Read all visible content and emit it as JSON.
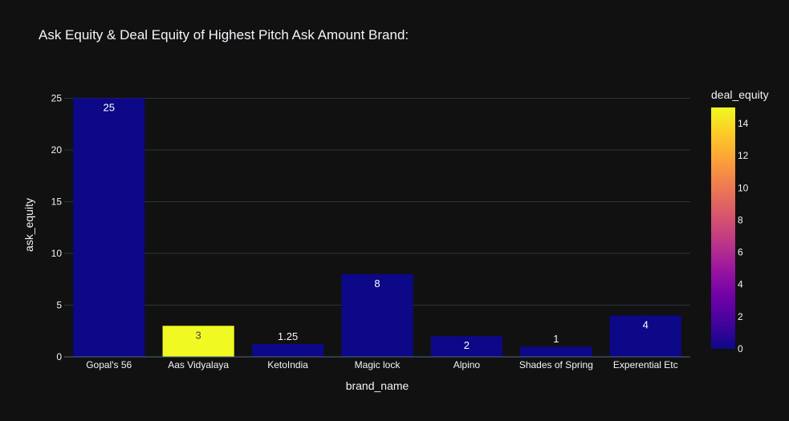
{
  "chart_data": {
    "type": "bar",
    "title": "Ask Equity & Deal Equity of Highest Pitch Ask Amount Brand:",
    "xlabel": "brand_name",
    "ylabel": "ask_equity",
    "categories": [
      "Gopal's 56",
      "Aas Vidyalaya",
      "KetoIndia",
      "Magic lock",
      "Alpino",
      "Shades of Spring",
      "Experential Etc"
    ],
    "values": [
      25,
      3,
      1.25,
      8,
      2,
      1,
      4
    ],
    "data_labels": [
      "25",
      "3",
      "1.25",
      "8",
      "2",
      "1",
      "4"
    ],
    "color_values": [
      0,
      15,
      0,
      0,
      0,
      0,
      0
    ],
    "ylim": [
      0,
      25.5
    ],
    "yticks": [
      0,
      5,
      10,
      15,
      20,
      25
    ],
    "grid": true,
    "colorbar": {
      "title": "deal_equity",
      "range": [
        0,
        15
      ],
      "ticks": [
        0,
        2,
        4,
        6,
        8,
        10,
        12,
        14
      ],
      "colorscale": [
        "#0d0887",
        "#46039f",
        "#7201a8",
        "#9c179e",
        "#bd3786",
        "#d8576b",
        "#ed7953",
        "#fb9f3a",
        "#fdca26",
        "#f0f921"
      ]
    }
  }
}
